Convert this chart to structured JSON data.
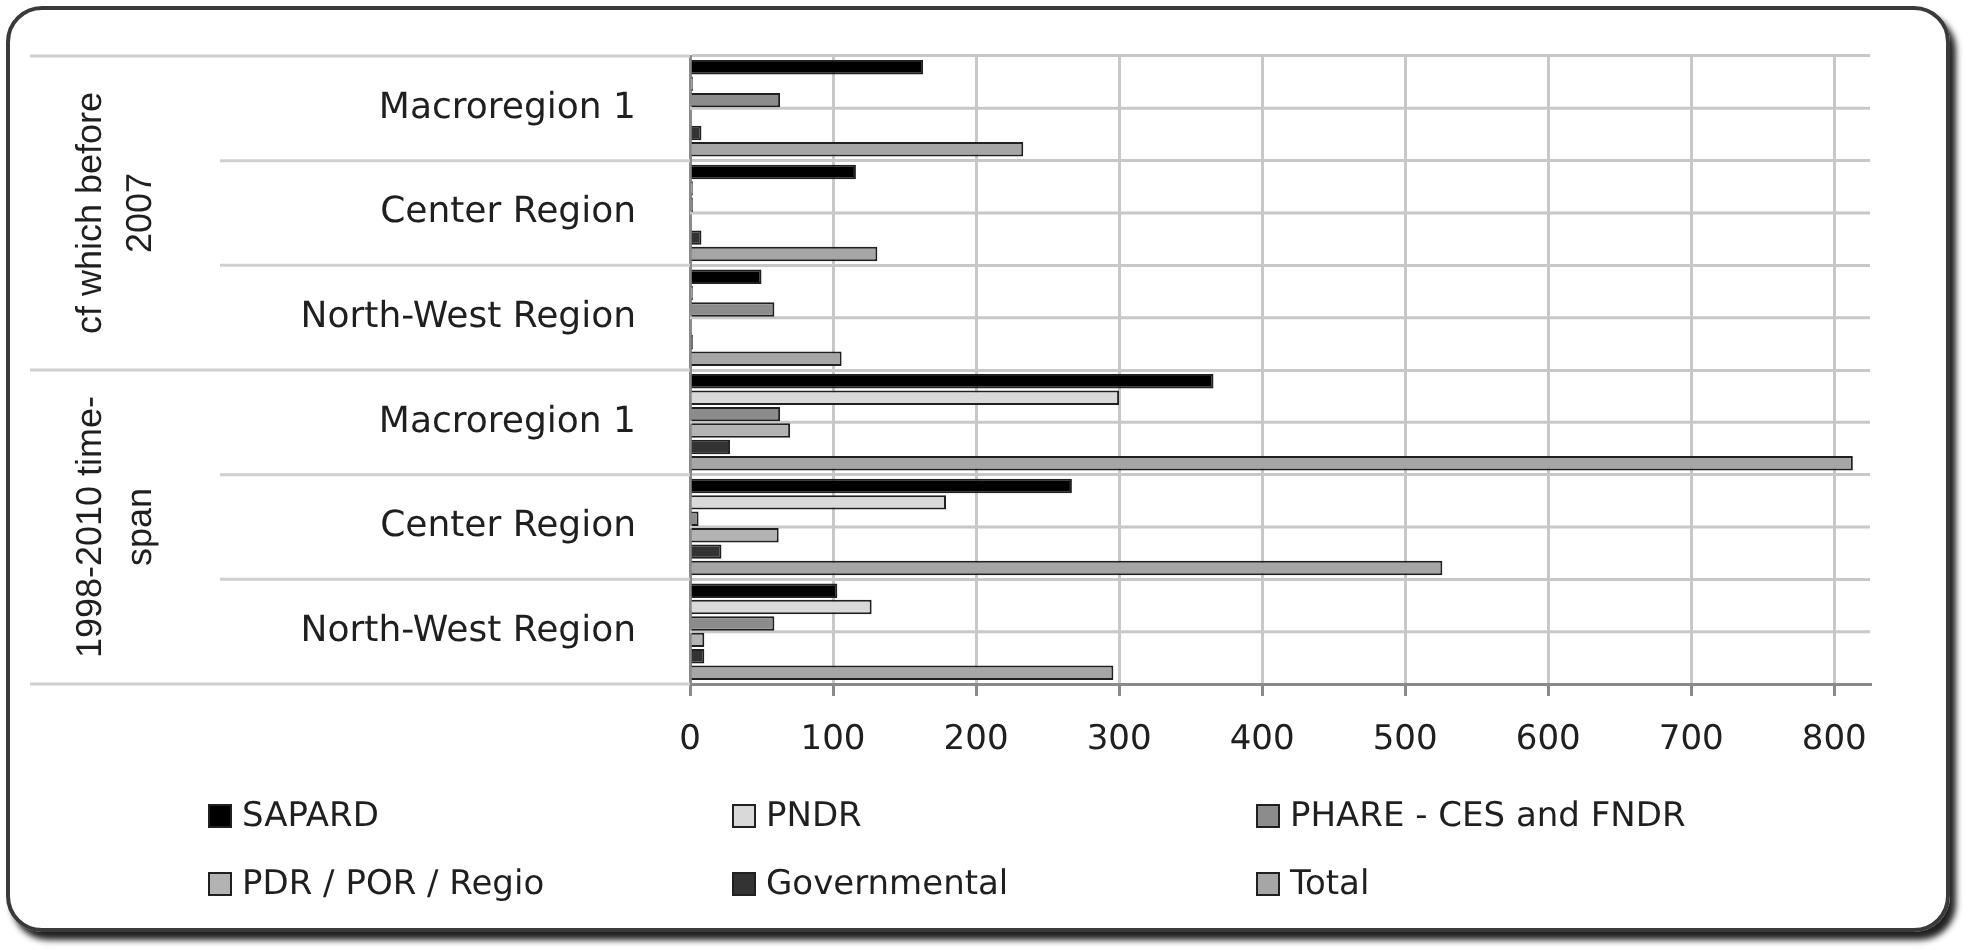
{
  "chart_data": {
    "type": "bar",
    "orientation": "horizontal",
    "categories": [
      "Macroregion 1",
      "Center Region",
      "North-West Region",
      "Macroregion 1",
      "Center Region",
      "North-West Region"
    ],
    "annotations": [
      "cf which before 2007",
      "1998-2010 time-span"
    ],
    "series": [
      {
        "name": "SAPARD",
        "color": "#000000",
        "values": [
          163,
          116,
          50,
          366,
          267,
          103
        ]
      },
      {
        "name": "PNDR",
        "color": "#d9d9d9",
        "values": [
          2,
          2,
          2,
          300,
          179,
          127
        ]
      },
      {
        "name": "PHARE - CES and FNDR",
        "color": "#8c8c8c",
        "values": [
          63,
          2,
          59,
          63,
          6,
          59
        ]
      },
      {
        "name": "PDR / POR / Regio",
        "color": "#b3b3b3",
        "values": [
          0,
          0,
          0,
          70,
          62,
          10
        ]
      },
      {
        "name": "Governmental",
        "color": "#333333",
        "values": [
          8,
          8,
          2,
          28,
          22,
          10
        ]
      },
      {
        "name": "Total",
        "color": "#a6a6a6",
        "values": [
          233,
          131,
          106,
          813,
          526,
          296
        ]
      }
    ],
    "xlim": [
      0,
      825
    ],
    "xticks": [
      0,
      100,
      200,
      300,
      400,
      500,
      600,
      700,
      800
    ],
    "grid": true,
    "legend": "bottom"
  }
}
